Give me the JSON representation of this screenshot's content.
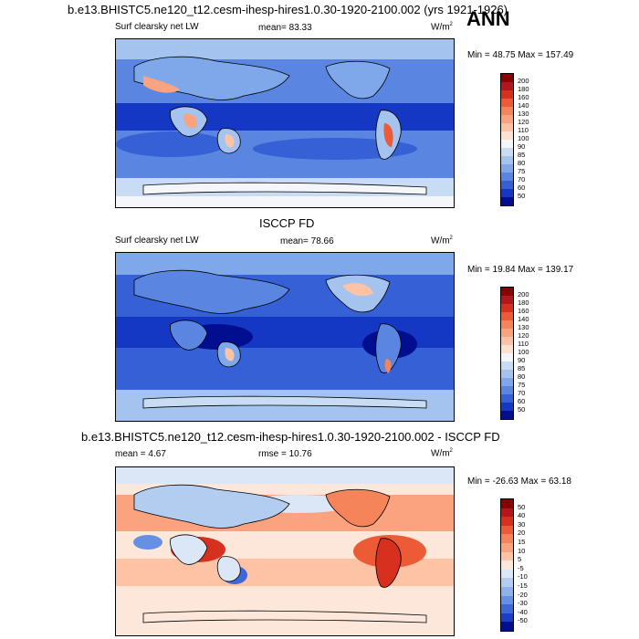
{
  "page": {
    "main_title": "b.e13.BHISTC5.ne120_t12.cesm-ihesp-hires1.0.30-1920-2100.002 (yrs 1921-1926)",
    "season": "ANN"
  },
  "chart_data": [
    {
      "type": "heatmap",
      "title": "b.e13.BHISTC5.ne120_t12.cesm-ihesp-hires1.0.30-1920-2100.002 (yrs 1921-1926)",
      "variable": "Surf clearsky net LW",
      "mean_label": "mean=",
      "mean": "83.33",
      "units": "W/m",
      "units_exp": "2",
      "min_label": "Min =",
      "min": "48.75",
      "max_label": "Max =",
      "max": "157.49",
      "colorbar_labels": [
        "200",
        "180",
        "160",
        "140",
        "130",
        "120",
        "110",
        "100",
        "90",
        "85",
        "80",
        "75",
        "70",
        "60",
        "50"
      ],
      "colorbar_colors": [
        "#8b0000",
        "#b3161c",
        "#d7301f",
        "#ec5a36",
        "#f5845a",
        "#fba27f",
        "#fdc3a4",
        "#fde0cd",
        "#f4f6fa",
        "#c8dcf4",
        "#a4c3ee",
        "#7fa8ea",
        "#5a86e2",
        "#3560d6",
        "#1538c4",
        "#000e8f"
      ],
      "colors_named": {
        "high": "#b3161c",
        "low": "#000e8f"
      }
    },
    {
      "type": "heatmap",
      "title": "ISCCP FD",
      "variable": "Surf clearsky net LW",
      "mean_label": "mean=",
      "mean": "78.66",
      "units": "W/m",
      "units_exp": "2",
      "min_label": "Min =",
      "min": "19.84",
      "max_label": "Max =",
      "max": "139.17",
      "colorbar_labels": [
        "200",
        "180",
        "160",
        "140",
        "130",
        "120",
        "110",
        "100",
        "90",
        "85",
        "80",
        "75",
        "70",
        "60",
        "50"
      ],
      "colorbar_colors": [
        "#8b0000",
        "#b3161c",
        "#d7301f",
        "#ec5a36",
        "#f5845a",
        "#fba27f",
        "#fdc3a4",
        "#fde0cd",
        "#f4f6fa",
        "#c8dcf4",
        "#a4c3ee",
        "#7fa8ea",
        "#5a86e2",
        "#3560d6",
        "#1538c4",
        "#000e8f"
      ]
    },
    {
      "type": "heatmap",
      "title": "b.e13.BHISTC5.ne120_t12.cesm-ihesp-hires1.0.30-1920-2100.002 - ISCCP FD",
      "mean_label": "mean =",
      "mean": "4.67",
      "rmse_label": "rmse =",
      "rmse": "10.76",
      "units": "W/m",
      "units_exp": "2",
      "min_label": "Min =",
      "min": "-26.63",
      "max_label": "Max =",
      "max": "63.18",
      "colorbar_labels": [
        "50",
        "40",
        "30",
        "20",
        "15",
        "10",
        "5",
        "-5",
        "-10",
        "-15",
        "-20",
        "-30",
        "-40",
        "-50"
      ],
      "colorbar_colors": [
        "#8b0000",
        "#b3161c",
        "#d7301f",
        "#ec5a36",
        "#f5845a",
        "#fba27f",
        "#fdc3a4",
        "#fde6da",
        "#dbe7f6",
        "#b3cdf0",
        "#8cb1eb",
        "#6590e3",
        "#3c68d8",
        "#1a3fc6",
        "#000e8f"
      ]
    }
  ]
}
